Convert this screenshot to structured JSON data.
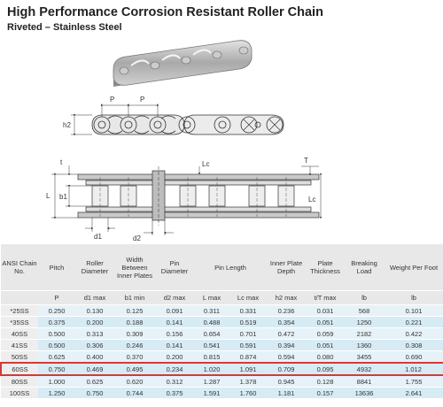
{
  "title": "High Performance Corrosion Resistant Roller Chain",
  "subtitle": "Riveted – Stainless Steel",
  "drawing_labels": {
    "p1": "P",
    "p2": "P",
    "h2": "h2",
    "t": "t",
    "T": "T",
    "L": "L",
    "b1": "b1",
    "Lc1": "Lc",
    "Lc2": "Lc",
    "d1": "d1",
    "d2": "d2"
  },
  "table": {
    "headers": [
      "ANSI Chain No.",
      "Pitch",
      "Roller Diameter",
      "Width Between Inner Plates",
      "Pin Diameter",
      "Pin Length",
      "Inner Plate Depth",
      "Plate Thickness",
      "Breaking Load",
      "Weight Per Foot"
    ],
    "subheaders": [
      "",
      "P",
      "d1 max",
      "b1 min",
      "d2 max",
      "L max",
      "Lc max",
      "h2 max",
      "t/T max",
      "lb",
      "lb"
    ],
    "rows": [
      [
        "*25SS",
        "0.250",
        "0.130",
        "0.125",
        "0.091",
        "0.311",
        "0.331",
        "0.236",
        "0.031",
        "568",
        "0.101"
      ],
      [
        "*35SS",
        "0.375",
        "0.200",
        "0.188",
        "0.141",
        "0.488",
        "0.519",
        "0.354",
        "0.051",
        "1250",
        "0.221"
      ],
      [
        "40SS",
        "0.500",
        "0.313",
        "0.309",
        "0.156",
        "0.654",
        "0.701",
        "0.472",
        "0.059",
        "2182",
        "0.422"
      ],
      [
        "41SS",
        "0.500",
        "0.306",
        "0.246",
        "0.141",
        "0.541",
        "0.591",
        "0.394",
        "0.051",
        "1360",
        "0.308"
      ],
      [
        "50SS",
        "0.625",
        "0.400",
        "0.370",
        "0.200",
        "0.815",
        "0.874",
        "0.594",
        "0.080",
        "3455",
        "0.690"
      ],
      [
        "60SS",
        "0.750",
        "0.469",
        "0.495",
        "0.234",
        "1.020",
        "1.091",
        "0.709",
        "0.095",
        "4932",
        "1.012"
      ],
      [
        "80SS",
        "1.000",
        "0.625",
        "0.620",
        "0.312",
        "1.287",
        "1.378",
        "0.945",
        "0.128",
        "8841",
        "1.755"
      ],
      [
        "100SS",
        "1.250",
        "0.750",
        "0.744",
        "0.375",
        "1.591",
        "1.760",
        "1.181",
        "0.157",
        "13636",
        "2.641"
      ]
    ],
    "highlight_color": "#d23a3a"
  }
}
